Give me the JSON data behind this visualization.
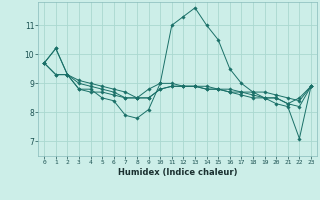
{
  "title": "",
  "xlabel": "Humidex (Indice chaleur)",
  "ylabel": "",
  "bg_color": "#cceee8",
  "grid_color": "#aad8d0",
  "line_color": "#1a7068",
  "x_ticks": [
    0,
    1,
    2,
    3,
    4,
    5,
    6,
    7,
    8,
    9,
    10,
    11,
    12,
    13,
    14,
    15,
    16,
    17,
    18,
    19,
    20,
    21,
    22,
    23
  ],
  "y_ticks": [
    7,
    8,
    9,
    10,
    11
  ],
  "ylim": [
    6.5,
    11.8
  ],
  "xlim": [
    -0.5,
    23.5
  ],
  "series": [
    [
      9.7,
      10.2,
      9.3,
      8.8,
      8.8,
      8.5,
      8.4,
      7.9,
      7.8,
      8.1,
      9.0,
      11.0,
      11.3,
      11.6,
      11.0,
      10.5,
      9.5,
      9.0,
      8.7,
      8.5,
      8.3,
      8.2,
      7.1,
      8.9
    ],
    [
      9.7,
      10.2,
      9.3,
      8.8,
      8.7,
      8.7,
      8.6,
      8.5,
      8.5,
      8.8,
      9.0,
      9.0,
      8.9,
      8.9,
      8.9,
      8.8,
      8.8,
      8.7,
      8.7,
      8.7,
      8.6,
      8.5,
      8.4,
      8.9
    ],
    [
      9.7,
      9.3,
      9.3,
      9.1,
      9.0,
      8.9,
      8.8,
      8.7,
      8.5,
      8.5,
      8.8,
      8.9,
      8.9,
      8.9,
      8.8,
      8.8,
      8.7,
      8.6,
      8.5,
      8.5,
      8.5,
      8.3,
      8.2,
      8.9
    ],
    [
      9.7,
      9.3,
      9.3,
      9.0,
      8.9,
      8.8,
      8.7,
      8.5,
      8.5,
      8.5,
      8.8,
      8.9,
      8.9,
      8.9,
      8.8,
      8.8,
      8.7,
      8.7,
      8.6,
      8.5,
      8.5,
      8.3,
      8.5,
      8.9
    ]
  ]
}
